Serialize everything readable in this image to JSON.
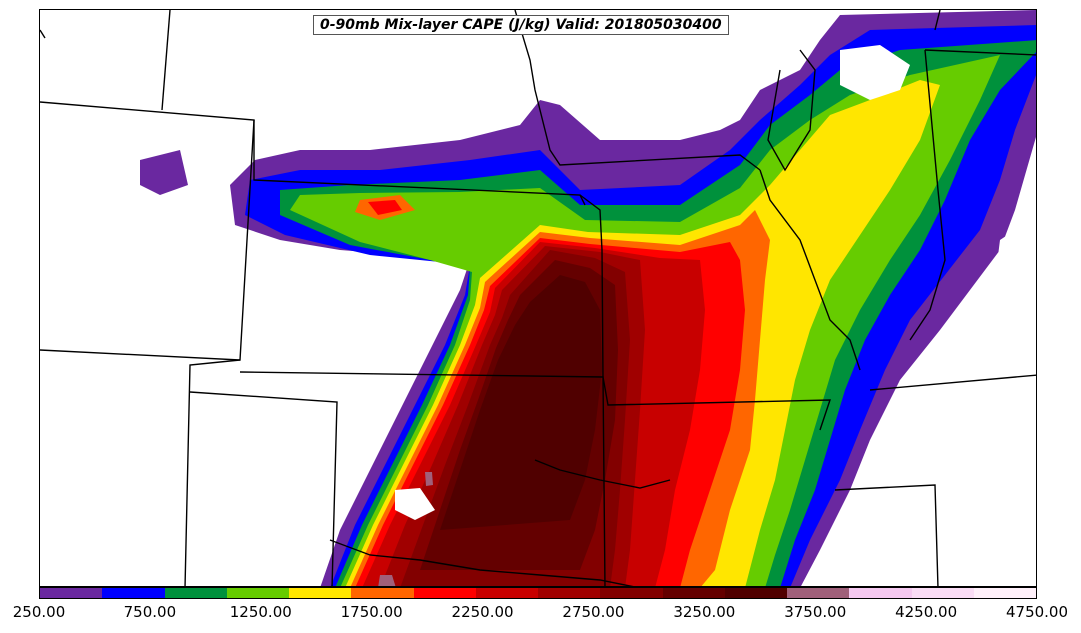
{
  "title": "0-90mb Mix-layer CAPE (J/kg) Valid: 201805030400",
  "colorbar": {
    "colors": [
      "#6a28a0",
      "#0000ff",
      "#00913c",
      "#66cc00",
      "#ffe600",
      "#ff6600",
      "#ff0000",
      "#c80000",
      "#a00000",
      "#820000",
      "#640000",
      "#500000",
      "#a0607a",
      "#f5c8f0",
      "#fadcf5",
      "#fff0fa"
    ],
    "tick_labels": [
      "250.00",
      "750.00",
      "1250.00",
      "1750.00",
      "2250.00",
      "2750.00",
      "3250.00",
      "3750.00",
      "4250.00",
      "4750.00"
    ]
  }
}
